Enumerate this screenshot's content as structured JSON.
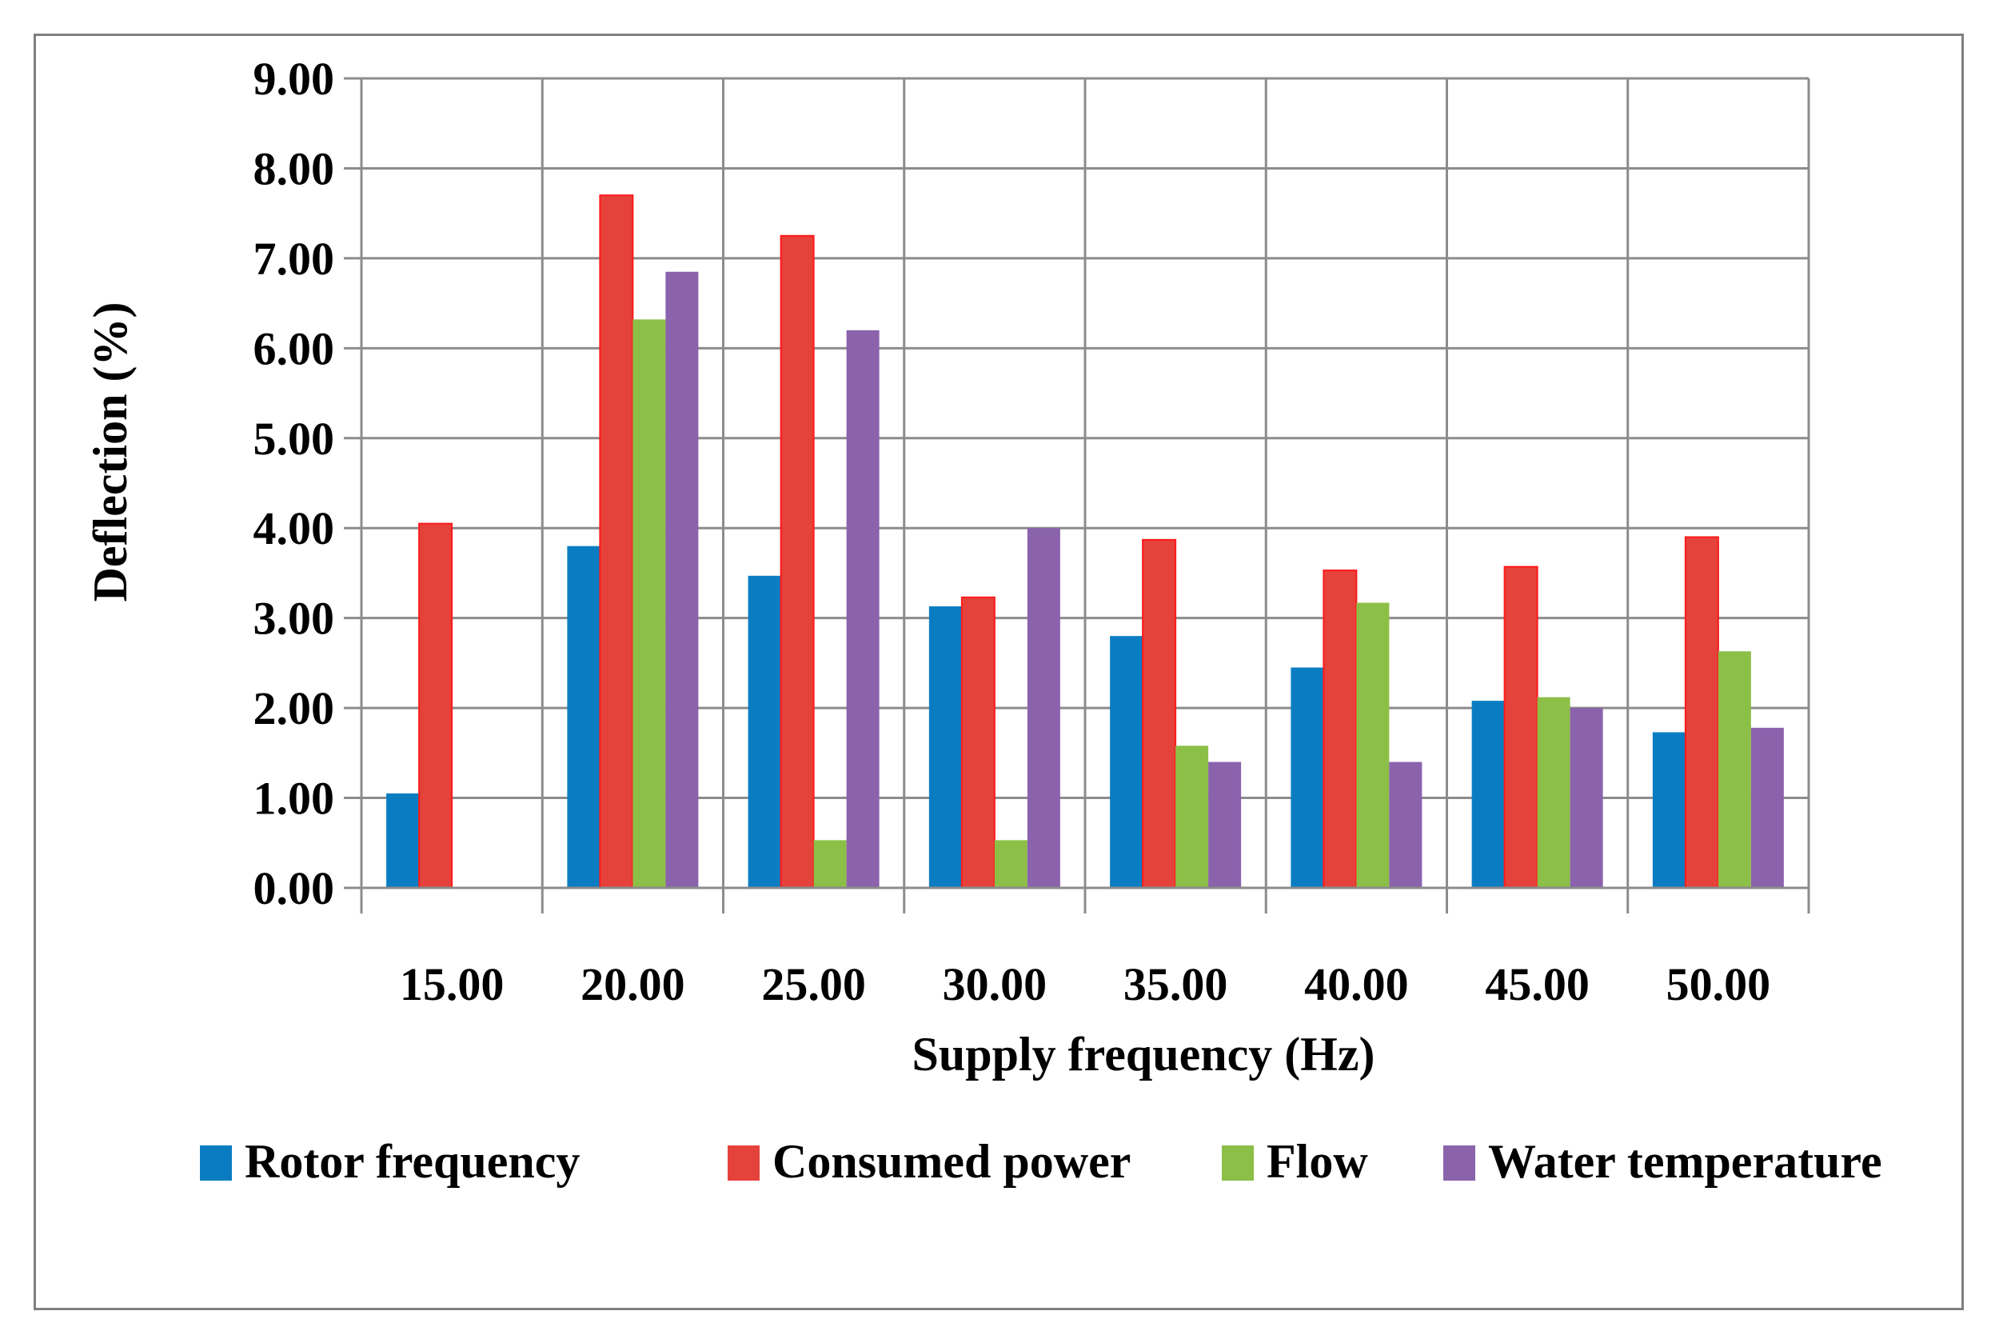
{
  "chart_data": {
    "type": "bar",
    "title": "",
    "xlabel": "Supply frequency (Hz)",
    "ylabel": "Deflection (%)",
    "ylim": [
      0,
      9
    ],
    "yticks": [
      "0.00",
      "1.00",
      "2.00",
      "3.00",
      "4.00",
      "5.00",
      "6.00",
      "7.00",
      "8.00",
      "9.00"
    ],
    "categories": [
      "15.00",
      "20.00",
      "25.00",
      "30.00",
      "35.00",
      "40.00",
      "45.00",
      "50.00"
    ],
    "grid": true,
    "legend_position": "bottom",
    "series": [
      {
        "name": "Rotor frequency",
        "color": "#0a7dc2",
        "values": [
          1.05,
          3.8,
          3.47,
          3.13,
          2.8,
          2.45,
          2.08,
          1.73
        ]
      },
      {
        "name": "Consumed power",
        "color": "#e5423b",
        "values": [
          4.05,
          7.7,
          7.25,
          3.23,
          3.87,
          3.53,
          3.57,
          3.9
        ]
      },
      {
        "name": "Flow",
        "color": "#8cbf47",
        "values": [
          0,
          6.32,
          0.53,
          0.53,
          1.58,
          3.17,
          2.12,
          2.63
        ]
      },
      {
        "name": "Water temperature",
        "color": "#8b62ac",
        "values": [
          0,
          6.85,
          6.2,
          4.0,
          1.4,
          1.4,
          2.0,
          1.78
        ]
      }
    ]
  }
}
